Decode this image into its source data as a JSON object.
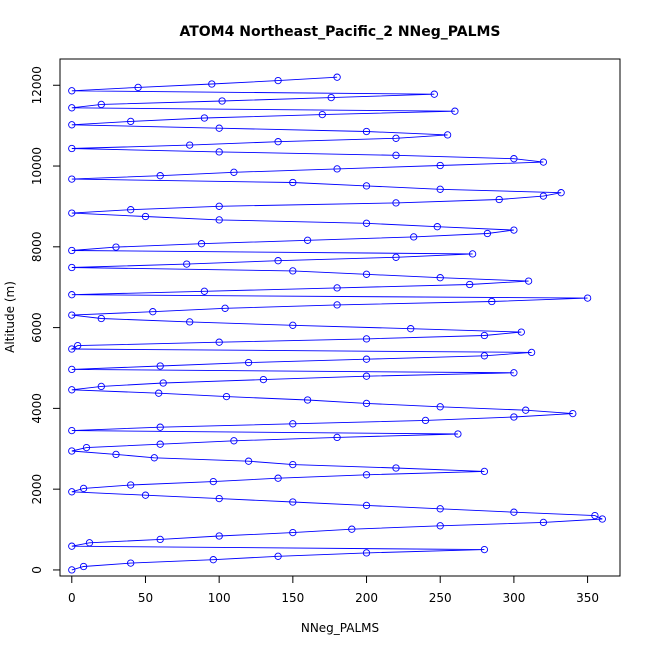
{
  "chart_data": {
    "type": "line",
    "title": "ATOM4 Northeast_Pacific_2 NNeg_PALMS",
    "xlabel": "NNeg_PALMS",
    "ylabel": "Altitude (m)",
    "xlim": [
      -8,
      372
    ],
    "ylim": [
      -150,
      12650
    ],
    "xticks": [
      0,
      50,
      100,
      150,
      200,
      250,
      300,
      350
    ],
    "yticks": [
      0,
      2000,
      4000,
      6000,
      8000,
      10000,
      12000
    ],
    "grid": false,
    "legend": "none",
    "series_color": "#0000ff",
    "marker": "open-circle",
    "series": [
      {
        "x": [
          0,
          8,
          40,
          96,
          140,
          200,
          280,
          0,
          12,
          60,
          100,
          150,
          190,
          250,
          320,
          360,
          355,
          300,
          250,
          200,
          150,
          100,
          50,
          0,
          8,
          40,
          96,
          140,
          200,
          280,
          220,
          150,
          120,
          56,
          30,
          0,
          10,
          60,
          110,
          180,
          262,
          0,
          60,
          150,
          240,
          300,
          340,
          308,
          250,
          200,
          160,
          105,
          59,
          0,
          20,
          62,
          130,
          200,
          300,
          0,
          60,
          120,
          200,
          280,
          312,
          0,
          4,
          100,
          200,
          280,
          305,
          230,
          150,
          80,
          20,
          0,
          55,
          104,
          180,
          285,
          350,
          0,
          90,
          180,
          270,
          310,
          250,
          200,
          150,
          0,
          78,
          140,
          220,
          272,
          0,
          30,
          88,
          160,
          232,
          282,
          300,
          248,
          200,
          100,
          50,
          0,
          40,
          100,
          220,
          290,
          320,
          332,
          250,
          200,
          150,
          0,
          60,
          110,
          180,
          250,
          320,
          300,
          220,
          100,
          0,
          80,
          140,
          220,
          255,
          200,
          100,
          0,
          40,
          90,
          170,
          260,
          0,
          20,
          102,
          176,
          246,
          0,
          45,
          95,
          140,
          180
        ]
      }
    ]
  }
}
